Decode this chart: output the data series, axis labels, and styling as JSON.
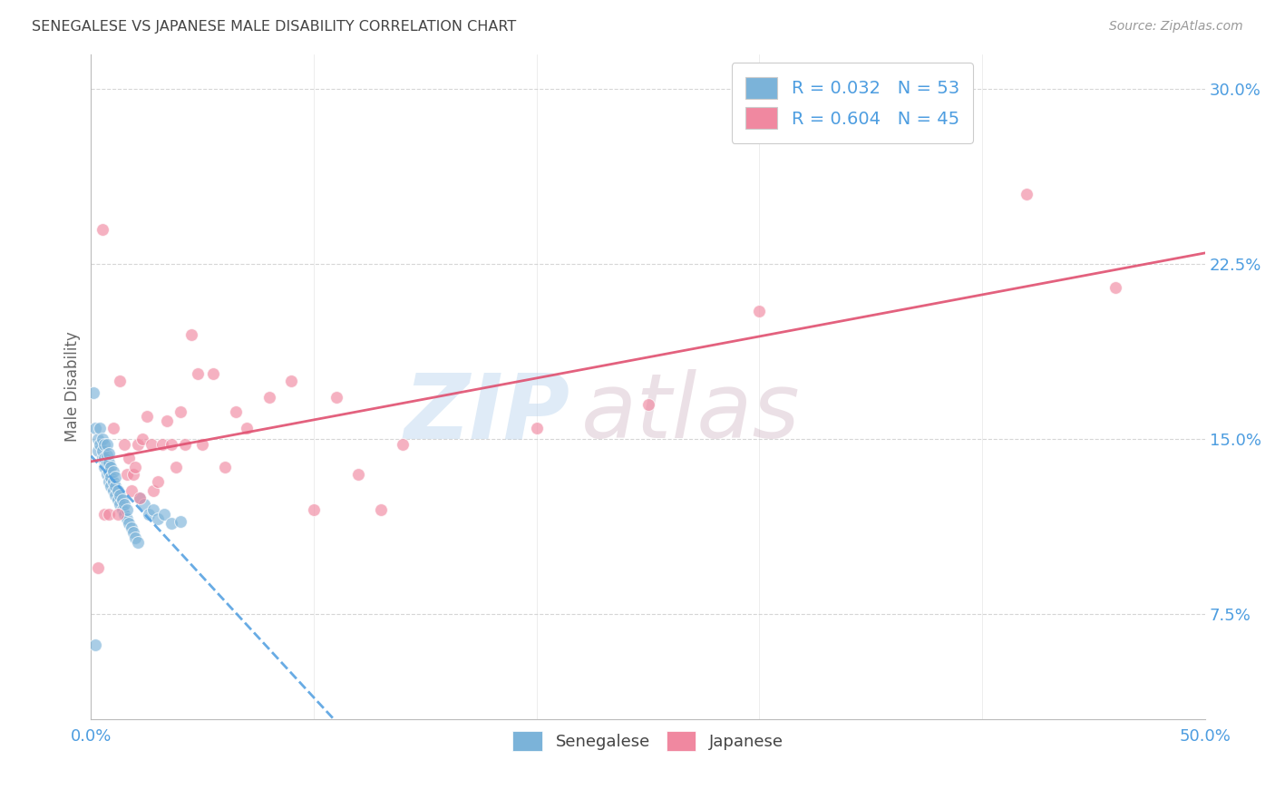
{
  "title": "SENEGALESE VS JAPANESE MALE DISABILITY CORRELATION CHART",
  "source": "Source: ZipAtlas.com",
  "ylabel": "Male Disability",
  "xlim": [
    0.0,
    0.5
  ],
  "ylim": [
    0.03,
    0.315
  ],
  "xticks": [
    0.0,
    0.1,
    0.2,
    0.3,
    0.4,
    0.5
  ],
  "xticklabels": [
    "0.0%",
    "",
    "",
    "",
    "",
    "50.0%"
  ],
  "yticks_right": [
    0.075,
    0.15,
    0.225,
    0.3
  ],
  "ytick_labels_right": [
    "7.5%",
    "15.0%",
    "22.5%",
    "30.0%"
  ],
  "legend_R_label_1": "R = 0.032   N = 53",
  "legend_R_label_2": "R = 0.604   N = 45",
  "watermark_zip": "ZIP",
  "watermark_atlas": "atlas",
  "senegalese_color": "#7bb3d9",
  "japanese_color": "#f088a0",
  "background_color": "#ffffff",
  "grid_color": "#cccccc",
  "title_color": "#444444",
  "axis_label_color": "#666666",
  "tick_label_color": "#4d9de0",
  "line_blue_color": "#4d9de0",
  "line_pink_color": "#e05070",
  "senegalese_x": [
    0.001,
    0.002,
    0.003,
    0.003,
    0.004,
    0.004,
    0.005,
    0.005,
    0.005,
    0.006,
    0.006,
    0.006,
    0.007,
    0.007,
    0.007,
    0.007,
    0.008,
    0.008,
    0.008,
    0.008,
    0.009,
    0.009,
    0.009,
    0.01,
    0.01,
    0.01,
    0.011,
    0.011,
    0.011,
    0.012,
    0.012,
    0.013,
    0.013,
    0.014,
    0.014,
    0.015,
    0.015,
    0.016,
    0.016,
    0.017,
    0.018,
    0.019,
    0.02,
    0.021,
    0.022,
    0.024,
    0.026,
    0.028,
    0.03,
    0.033,
    0.036,
    0.04,
    0.002
  ],
  "senegalese_y": [
    0.17,
    0.155,
    0.15,
    0.145,
    0.148,
    0.155,
    0.142,
    0.145,
    0.15,
    0.138,
    0.142,
    0.148,
    0.135,
    0.14,
    0.143,
    0.148,
    0.132,
    0.136,
    0.14,
    0.144,
    0.13,
    0.134,
    0.138,
    0.128,
    0.132,
    0.136,
    0.126,
    0.13,
    0.134,
    0.124,
    0.128,
    0.122,
    0.126,
    0.12,
    0.124,
    0.118,
    0.122,
    0.116,
    0.12,
    0.114,
    0.112,
    0.11,
    0.108,
    0.106,
    0.125,
    0.122,
    0.118,
    0.12,
    0.116,
    0.118,
    0.114,
    0.115,
    0.062
  ],
  "japanese_x": [
    0.003,
    0.005,
    0.006,
    0.008,
    0.01,
    0.012,
    0.013,
    0.015,
    0.016,
    0.017,
    0.018,
    0.019,
    0.02,
    0.021,
    0.022,
    0.023,
    0.025,
    0.027,
    0.028,
    0.03,
    0.032,
    0.034,
    0.036,
    0.038,
    0.04,
    0.042,
    0.045,
    0.048,
    0.05,
    0.055,
    0.06,
    0.065,
    0.07,
    0.08,
    0.09,
    0.1,
    0.11,
    0.12,
    0.13,
    0.14,
    0.2,
    0.25,
    0.3,
    0.42,
    0.46
  ],
  "japanese_y": [
    0.095,
    0.24,
    0.118,
    0.118,
    0.155,
    0.118,
    0.175,
    0.148,
    0.135,
    0.142,
    0.128,
    0.135,
    0.138,
    0.148,
    0.125,
    0.15,
    0.16,
    0.148,
    0.128,
    0.132,
    0.148,
    0.158,
    0.148,
    0.138,
    0.162,
    0.148,
    0.195,
    0.178,
    0.148,
    0.178,
    0.138,
    0.162,
    0.155,
    0.168,
    0.175,
    0.12,
    0.168,
    0.135,
    0.12,
    0.148,
    0.155,
    0.165,
    0.205,
    0.255,
    0.215
  ]
}
